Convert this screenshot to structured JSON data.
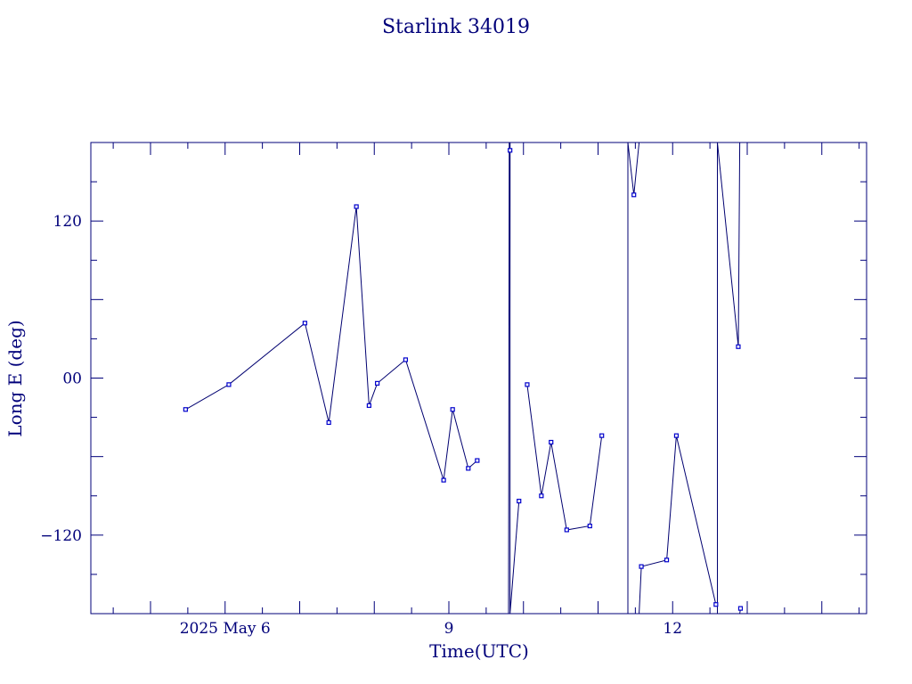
{
  "chart_data": {
    "type": "line",
    "title": "Starlink 34019",
    "xlabel": "Time(UTC)",
    "ylabel": "Long E (deg)",
    "x_unit": "days in 2025 May (UTC)",
    "xlim": [
      4.2,
      14.6
    ],
    "ylim": [
      -180,
      180
    ],
    "x_ticks": [
      {
        "value": 6,
        "label": "2025 May  6"
      },
      {
        "value": 9,
        "label": "9"
      },
      {
        "value": 12,
        "label": "12"
      }
    ],
    "y_ticks": [
      {
        "value": 120,
        "label": "120"
      },
      {
        "value": 0,
        "label": "00"
      },
      {
        "value": -120,
        "label": "−120"
      }
    ],
    "grid": false,
    "line_color": "#000070",
    "marker_color": "#0000cc",
    "series": [
      {
        "points": [
          {
            "x": 5.47,
            "y": -24
          },
          {
            "x": 6.05,
            "y": -5
          },
          {
            "x": 7.07,
            "y": 42
          },
          {
            "x": 7.39,
            "y": -34
          },
          {
            "x": 7.76,
            "y": 131
          },
          {
            "x": 7.93,
            "y": -21
          },
          {
            "x": 8.04,
            "y": -4
          },
          {
            "x": 8.42,
            "y": 14
          },
          {
            "x": 8.93,
            "y": -78
          },
          {
            "x": 9.05,
            "y": -24
          },
          {
            "x": 9.26,
            "y": -69
          },
          {
            "x": 9.38,
            "y": -63
          },
          {
            "x": 9.8,
            "y": -180
          },
          {
            "x": 9.81,
            "y": 180
          },
          {
            "x": 9.82,
            "y": 174
          },
          {
            "x": 9.82,
            "y": 180
          },
          {
            "x": 9.82,
            "y": -180
          },
          {
            "x": 9.94,
            "y": -94
          },
          {
            "x": 10.05,
            "y": -5
          },
          {
            "x": 10.24,
            "y": -90
          },
          {
            "x": 10.37,
            "y": -49
          },
          {
            "x": 10.58,
            "y": -116
          },
          {
            "x": 10.89,
            "y": -113
          },
          {
            "x": 11.05,
            "y": -44
          },
          {
            "x": 11.4,
            "y": -180
          },
          {
            "x": 11.4,
            "y": 180
          },
          {
            "x": 11.48,
            "y": 140
          },
          {
            "x": 11.55,
            "y": 180
          },
          {
            "x": 11.55,
            "y": -180
          },
          {
            "x": 11.58,
            "y": -144
          },
          {
            "x": 11.92,
            "y": -139
          },
          {
            "x": 12.05,
            "y": -44
          },
          {
            "x": 12.58,
            "y": -173
          },
          {
            "x": 12.6,
            "y": -180
          },
          {
            "x": 12.6,
            "y": 180
          },
          {
            "x": 12.88,
            "y": 24
          },
          {
            "x": 12.9,
            "y": 180
          },
          {
            "x": 12.9,
            "y": -180
          },
          {
            "x": 12.91,
            "y": -176
          }
        ],
        "break_after_indices": [
          11,
          17,
          23,
          27,
          32,
          36
        ]
      }
    ]
  }
}
